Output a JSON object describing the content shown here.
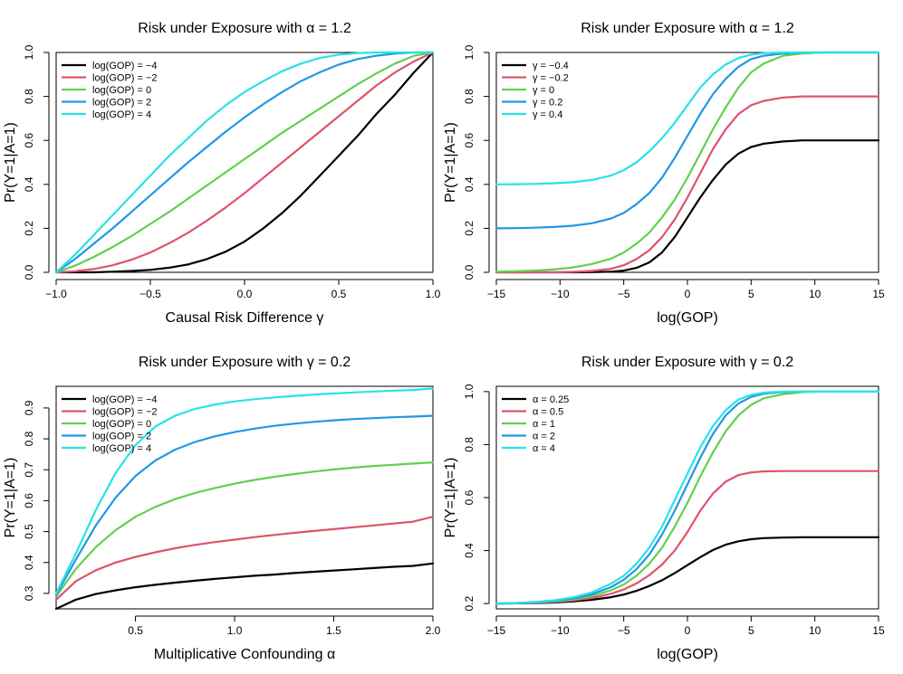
{
  "chart_data": [
    {
      "type": "line",
      "title": "Risk under Exposure with α = 1.2",
      "xlabel": "Causal Risk Difference γ",
      "ylabel": "Pr(Y=1|A=1)",
      "xlim": [
        -1.0,
        1.0
      ],
      "ylim": [
        0.0,
        1.0
      ],
      "xticks": [
        -1.0,
        -0.5,
        0.0,
        0.5,
        1.0
      ],
      "xtick_labels": [
        "−1.0",
        "−0.5",
        "0.0",
        "0.5",
        "1.0"
      ],
      "yticks": [
        0.0,
        0.2,
        0.4,
        0.6,
        0.8,
        1.0
      ],
      "ytick_labels": [
        "0.0",
        "0.2",
        "0.4",
        "0.6",
        "0.8",
        "1.0"
      ],
      "legend_position": "top-left",
      "x": [
        -1.0,
        -0.9,
        -0.8,
        -0.7,
        -0.6,
        -0.5,
        -0.4,
        -0.3,
        -0.2,
        -0.1,
        0.0,
        0.1,
        0.2,
        0.3,
        0.4,
        0.5,
        0.6,
        0.7,
        0.8,
        0.9,
        1.0
      ],
      "series": [
        {
          "name": "log(GOP) = −4",
          "color": "#000000",
          "values": [
            0.0,
            0.0,
            0.0,
            0.003,
            0.006,
            0.011,
            0.021,
            0.036,
            0.06,
            0.094,
            0.14,
            0.2,
            0.27,
            0.35,
            0.44,
            0.53,
            0.62,
            0.72,
            0.81,
            0.91,
            1.0
          ]
        },
        {
          "name": "log(GOP) = −2",
          "color": "#DF536B",
          "values": [
            0.0,
            0.005,
            0.015,
            0.032,
            0.057,
            0.09,
            0.132,
            0.18,
            0.235,
            0.295,
            0.36,
            0.43,
            0.5,
            0.57,
            0.64,
            0.71,
            0.78,
            0.85,
            0.91,
            0.96,
            1.0
          ]
        },
        {
          "name": "log(GOP) = 0",
          "color": "#61D04F",
          "values": [
            0.0,
            0.03,
            0.07,
            0.115,
            0.165,
            0.22,
            0.275,
            0.335,
            0.395,
            0.455,
            0.515,
            0.575,
            0.635,
            0.69,
            0.745,
            0.8,
            0.855,
            0.905,
            0.95,
            0.985,
            1.0
          ]
        },
        {
          "name": "log(GOP) = 2",
          "color": "#2297E6",
          "values": [
            0.0,
            0.06,
            0.13,
            0.2,
            0.275,
            0.35,
            0.425,
            0.5,
            0.57,
            0.64,
            0.705,
            0.765,
            0.82,
            0.87,
            0.91,
            0.945,
            0.97,
            0.985,
            0.995,
            1.0,
            1.0
          ]
        },
        {
          "name": "log(GOP) = 4",
          "color": "#28E2E5",
          "values": [
            0.0,
            0.08,
            0.17,
            0.26,
            0.35,
            0.44,
            0.53,
            0.61,
            0.69,
            0.76,
            0.82,
            0.87,
            0.915,
            0.95,
            0.975,
            0.99,
            0.997,
            1.0,
            1.0,
            1.0,
            1.0
          ]
        }
      ]
    },
    {
      "type": "line",
      "title": "Risk under Exposure with α = 1.2",
      "xlabel": "log(GOP)",
      "ylabel": "Pr(Y=1|A=1)",
      "xlim": [
        -15,
        15
      ],
      "ylim": [
        0.0,
        1.0
      ],
      "xticks": [
        -15,
        -10,
        -5,
        0,
        5,
        10,
        15
      ],
      "xtick_labels": [
        "−15",
        "−10",
        "−5",
        "0",
        "5",
        "10",
        "15"
      ],
      "yticks": [
        0.0,
        0.2,
        0.4,
        0.6,
        0.8,
        1.0
      ],
      "ytick_labels": [
        "0.0",
        "0.2",
        "0.4",
        "0.6",
        "0.8",
        "1.0"
      ],
      "legend_position": "top-left",
      "x": [
        -15,
        -13.5,
        -12,
        -10.5,
        -9,
        -7.5,
        -6,
        -5,
        -4,
        -3,
        -2,
        -1,
        0,
        1,
        2,
        3,
        4,
        5,
        6,
        7.5,
        9,
        10.5,
        12,
        13.5,
        15
      ],
      "series": [
        {
          "name": "γ = −0.4",
          "color": "#000000",
          "values": [
            0.0,
            0.0,
            0.0,
            0.0,
            0.0,
            0.001,
            0.003,
            0.008,
            0.02,
            0.045,
            0.09,
            0.16,
            0.25,
            0.34,
            0.42,
            0.49,
            0.54,
            0.57,
            0.585,
            0.595,
            0.6,
            0.6,
            0.6,
            0.6,
            0.6
          ]
        },
        {
          "name": "γ = −0.2",
          "color": "#DF536B",
          "values": [
            0.0,
            0.0,
            0.0,
            0.0,
            0.002,
            0.006,
            0.016,
            0.032,
            0.06,
            0.1,
            0.16,
            0.24,
            0.34,
            0.45,
            0.56,
            0.65,
            0.72,
            0.76,
            0.78,
            0.795,
            0.8,
            0.8,
            0.8,
            0.8,
            0.8
          ]
        },
        {
          "name": "γ = 0",
          "color": "#61D04F",
          "values": [
            0.003,
            0.005,
            0.008,
            0.013,
            0.022,
            0.038,
            0.062,
            0.09,
            0.13,
            0.18,
            0.25,
            0.33,
            0.43,
            0.54,
            0.65,
            0.75,
            0.84,
            0.91,
            0.95,
            0.985,
            0.995,
            1.0,
            1.0,
            1.0,
            1.0
          ]
        },
        {
          "name": "γ = 0.2",
          "color": "#2297E6",
          "values": [
            0.2,
            0.201,
            0.203,
            0.206,
            0.212,
            0.223,
            0.245,
            0.27,
            0.31,
            0.36,
            0.43,
            0.52,
            0.62,
            0.72,
            0.81,
            0.88,
            0.935,
            0.97,
            0.985,
            0.995,
            1.0,
            1.0,
            1.0,
            1.0,
            1.0
          ]
        },
        {
          "name": "γ = 0.4",
          "color": "#28E2E5",
          "values": [
            0.4,
            0.401,
            0.402,
            0.405,
            0.41,
            0.42,
            0.44,
            0.465,
            0.5,
            0.55,
            0.61,
            0.68,
            0.76,
            0.84,
            0.9,
            0.945,
            0.975,
            0.99,
            0.997,
            1.0,
            1.0,
            1.0,
            1.0,
            1.0,
            1.0
          ]
        }
      ]
    },
    {
      "type": "line",
      "title": "Risk under Exposure with γ = 0.2",
      "xlabel": "Multiplicative Confounding α",
      "ylabel": "Pr(Y=1|A=1)",
      "xlim": [
        0.1,
        2.0
      ],
      "ylim": [
        0.25,
        0.97
      ],
      "xticks": [
        0.5,
        1.0,
        1.5,
        2.0
      ],
      "xtick_labels": [
        "0.5",
        "1.0",
        "1.5",
        "2.0"
      ],
      "yticks": [
        0.3,
        0.4,
        0.5,
        0.6,
        0.7,
        0.8,
        0.9
      ],
      "ytick_labels": [
        "0.3",
        "0.4",
        "0.5",
        "0.6",
        "0.7",
        "0.8",
        "0.9"
      ],
      "legend_position": "top-left",
      "x": [
        0.1,
        0.2,
        0.3,
        0.4,
        0.5,
        0.6,
        0.7,
        0.8,
        0.9,
        1.0,
        1.1,
        1.2,
        1.3,
        1.4,
        1.5,
        1.6,
        1.7,
        1.8,
        1.9,
        2.0
      ],
      "series": [
        {
          "name": "log(GOP) = −4",
          "color": "#000000",
          "values": [
            0.25,
            0.28,
            0.298,
            0.31,
            0.32,
            0.328,
            0.335,
            0.341,
            0.347,
            0.352,
            0.357,
            0.361,
            0.366,
            0.37,
            0.374,
            0.378,
            0.382,
            0.386,
            0.389,
            0.397
          ]
        },
        {
          "name": "log(GOP) = −2",
          "color": "#DF536B",
          "values": [
            0.28,
            0.34,
            0.375,
            0.4,
            0.418,
            0.433,
            0.446,
            0.457,
            0.466,
            0.474,
            0.482,
            0.489,
            0.496,
            0.502,
            0.508,
            0.514,
            0.52,
            0.526,
            0.532,
            0.548
          ]
        },
        {
          "name": "log(GOP) = 0",
          "color": "#61D04F",
          "values": [
            0.29,
            0.38,
            0.45,
            0.505,
            0.548,
            0.58,
            0.605,
            0.625,
            0.641,
            0.655,
            0.667,
            0.677,
            0.686,
            0.694,
            0.701,
            0.707,
            0.712,
            0.716,
            0.72,
            0.724
          ]
        },
        {
          "name": "log(GOP) = 2",
          "color": "#2297E6",
          "values": [
            0.295,
            0.41,
            0.52,
            0.61,
            0.68,
            0.73,
            0.765,
            0.79,
            0.808,
            0.822,
            0.833,
            0.842,
            0.849,
            0.855,
            0.86,
            0.864,
            0.867,
            0.87,
            0.872,
            0.875
          ]
        },
        {
          "name": "log(GOP) = 4",
          "color": "#28E2E5",
          "values": [
            0.3,
            0.43,
            0.57,
            0.69,
            0.78,
            0.84,
            0.875,
            0.897,
            0.911,
            0.921,
            0.928,
            0.934,
            0.939,
            0.943,
            0.947,
            0.95,
            0.953,
            0.956,
            0.958,
            0.963
          ]
        }
      ]
    },
    {
      "type": "line",
      "title": "Risk under Exposure with γ = 0.2",
      "xlabel": "log(GOP)",
      "ylabel": "Pr(Y=1|A=1)",
      "xlim": [
        -15,
        15
      ],
      "ylim": [
        0.18,
        1.02
      ],
      "xticks": [
        -15,
        -10,
        -5,
        0,
        5,
        10,
        15
      ],
      "xtick_labels": [
        "−15",
        "−10",
        "−5",
        "0",
        "5",
        "10",
        "15"
      ],
      "yticks": [
        0.2,
        0.4,
        0.6,
        0.8,
        1.0
      ],
      "ytick_labels": [
        "0.2",
        "0.4",
        "0.6",
        "0.8",
        "1.0"
      ],
      "legend_position": "top-left",
      "x": [
        -15,
        -13.5,
        -12,
        -10.5,
        -9,
        -7.5,
        -6,
        -5,
        -4,
        -3,
        -2,
        -1,
        0,
        1,
        2,
        3,
        4,
        5,
        6,
        7.5,
        9,
        10.5,
        12,
        13.5,
        15
      ],
      "series": [
        {
          "name": "α = 0.25",
          "color": "#000000",
          "values": [
            0.2,
            0.201,
            0.202,
            0.204,
            0.208,
            0.214,
            0.224,
            0.234,
            0.248,
            0.266,
            0.288,
            0.315,
            0.345,
            0.375,
            0.402,
            0.422,
            0.435,
            0.443,
            0.447,
            0.449,
            0.45,
            0.45,
            0.45,
            0.45,
            0.45
          ]
        },
        {
          "name": "α = 0.5",
          "color": "#DF536B",
          "values": [
            0.2,
            0.201,
            0.203,
            0.206,
            0.212,
            0.221,
            0.237,
            0.253,
            0.276,
            0.307,
            0.347,
            0.4,
            0.47,
            0.55,
            0.615,
            0.66,
            0.685,
            0.695,
            0.699,
            0.7,
            0.7,
            0.7,
            0.7,
            0.7,
            0.7
          ]
        },
        {
          "name": "α = 1",
          "color": "#61D04F",
          "values": [
            0.2,
            0.202,
            0.204,
            0.208,
            0.215,
            0.228,
            0.25,
            0.272,
            0.305,
            0.35,
            0.41,
            0.49,
            0.58,
            0.68,
            0.77,
            0.85,
            0.91,
            0.95,
            0.975,
            0.99,
            0.998,
            1.0,
            1.0,
            1.0,
            1.0
          ]
        },
        {
          "name": "α = 2",
          "color": "#2297E6",
          "values": [
            0.2,
            0.202,
            0.205,
            0.21,
            0.219,
            0.235,
            0.262,
            0.29,
            0.33,
            0.385,
            0.46,
            0.55,
            0.65,
            0.75,
            0.84,
            0.91,
            0.955,
            0.98,
            0.992,
            0.998,
            1.0,
            1.0,
            1.0,
            1.0,
            1.0
          ]
        },
        {
          "name": "α = 4",
          "color": "#28E2E5",
          "values": [
            0.2,
            0.202,
            0.206,
            0.212,
            0.223,
            0.242,
            0.275,
            0.305,
            0.35,
            0.41,
            0.49,
            0.59,
            0.69,
            0.79,
            0.87,
            0.93,
            0.97,
            0.988,
            0.996,
            1.0,
            1.0,
            1.0,
            1.0,
            1.0,
            1.0
          ]
        }
      ]
    }
  ]
}
